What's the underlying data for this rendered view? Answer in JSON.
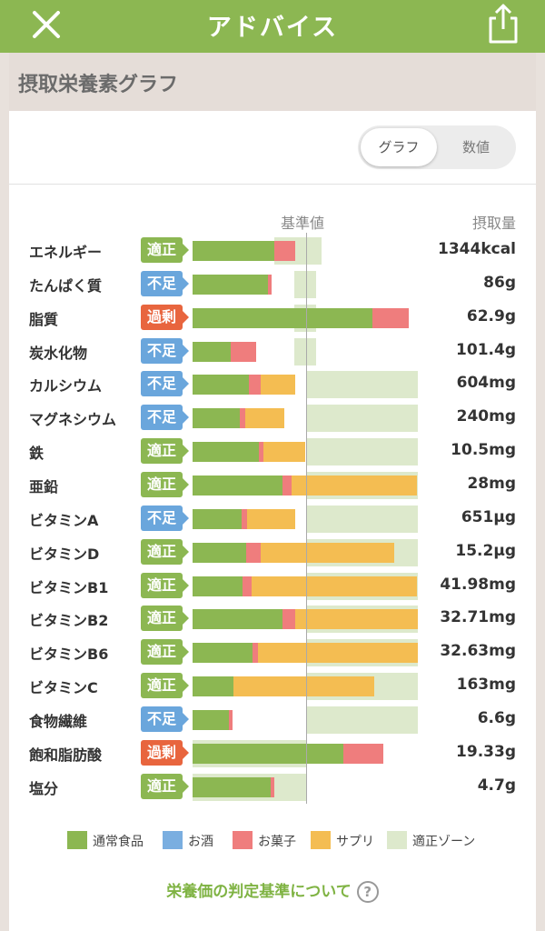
{
  "header": {
    "title": "アドバイス"
  },
  "section": {
    "title": "摂取栄養素グラフ"
  },
  "toggle": {
    "graph_label": "グラフ",
    "number_label": "数値"
  },
  "columns": {
    "reference": "基準値",
    "intake": "摂取量"
  },
  "colors": {
    "food": "#8cb752",
    "alcohol": "#7aaee0",
    "snack": "#ef7d7d",
    "supplement": "#f4bd52",
    "zone": "#dde9cc",
    "status_ok": "#8cb752",
    "status_low": "#6aa6dc",
    "status_over": "#e8653e"
  },
  "nutrients": [
    {
      "name": "エネルギー",
      "status": "適正",
      "status_type": "ok",
      "value": "1344kcal",
      "food": 0.9,
      "snack": 0.23,
      "supp": 0,
      "zone": [
        0.9,
        1.42
      ]
    },
    {
      "name": "たんぱく質",
      "status": "不足",
      "status_type": "low",
      "value": "86g",
      "food": 0.83,
      "snack": 0.04,
      "supp": 0,
      "zone": [
        1.12,
        1.36
      ]
    },
    {
      "name": "脂質",
      "status": "過剰",
      "status_type": "over",
      "value": "62.9g",
      "food": 1.98,
      "snack": 0.4,
      "supp": 0,
      "zone": [
        1.12,
        1.36
      ]
    },
    {
      "name": "炭水化物",
      "status": "不足",
      "status_type": "low",
      "value": "101.4g",
      "food": 0.42,
      "snack": 0.28,
      "supp": 0,
      "zone": [
        1.12,
        1.36
      ]
    },
    {
      "name": "カルシウム",
      "status": "不足",
      "status_type": "low",
      "value": "604mg",
      "food": 0.62,
      "snack": 0.13,
      "supp": 0.38,
      "zone": [
        1.25,
        2.48
      ]
    },
    {
      "name": "マグネシウム",
      "status": "不足",
      "status_type": "low",
      "value": "240mg",
      "food": 0.52,
      "snack": 0.06,
      "supp": 0.43,
      "zone": [
        1.25,
        2.48
      ]
    },
    {
      "name": "鉄",
      "status": "適正",
      "status_type": "ok",
      "value": "10.5mg",
      "food": 0.73,
      "snack": 0.05,
      "supp": 0.46,
      "zone": [
        1.25,
        2.48
      ]
    },
    {
      "name": "亜鉛",
      "status": "適正",
      "status_type": "ok",
      "value": "28mg",
      "food": 0.99,
      "snack": 0.1,
      "supp": 1.38,
      "zone": [
        1.25,
        2.48
      ]
    },
    {
      "name": "ビタミンA",
      "status": "不足",
      "status_type": "low",
      "value": "651μg",
      "food": 0.54,
      "snack": 0.06,
      "supp": 0.53,
      "zone": [
        1.25,
        2.48
      ]
    },
    {
      "name": "ビタミンD",
      "status": "適正",
      "status_type": "ok",
      "value": "15.2μg",
      "food": 0.59,
      "snack": 0.16,
      "supp": 1.47,
      "zone": [
        1.25,
        2.48
      ]
    },
    {
      "name": "ビタミンB1",
      "status": "適正",
      "status_type": "ok",
      "value": "41.98mg",
      "food": 0.55,
      "snack": 0.1,
      "supp": 1.82,
      "zone": [
        1.25,
        2.48
      ]
    },
    {
      "name": "ビタミンB2",
      "status": "適正",
      "status_type": "ok",
      "value": "32.71mg",
      "food": 0.99,
      "snack": 0.14,
      "supp": 1.35,
      "zone": [
        1.25,
        2.48
      ]
    },
    {
      "name": "ビタミンB6",
      "status": "適正",
      "status_type": "ok",
      "value": "32.63mg",
      "food": 0.66,
      "snack": 0.06,
      "supp": 1.76,
      "zone": [
        1.25,
        2.48
      ]
    },
    {
      "name": "ビタミンC",
      "status": "適正",
      "status_type": "ok",
      "value": "163mg",
      "food": 0.45,
      "snack": 0,
      "supp": 1.55,
      "zone": [
        1.25,
        2.48
      ]
    },
    {
      "name": "食物繊維",
      "status": "不足",
      "status_type": "low",
      "value": "6.6g",
      "food": 0.4,
      "snack": 0.04,
      "supp": 0,
      "zone": [
        1.25,
        2.48
      ]
    },
    {
      "name": "飽和脂肪酸",
      "status": "過剰",
      "status_type": "over",
      "value": "19.33g",
      "food": 1.66,
      "snack": 0.44,
      "supp": 0,
      "zone": [
        0,
        1.25
      ]
    },
    {
      "name": "塩分",
      "status": "適正",
      "status_type": "ok",
      "value": "4.7g",
      "food": 0.86,
      "snack": 0.04,
      "supp": 0,
      "zone": [
        0,
        1.25
      ]
    }
  ],
  "legend": [
    {
      "label": "通常食品",
      "key": "food"
    },
    {
      "label": "お酒",
      "key": "alcohol"
    },
    {
      "label": "お菓子",
      "key": "snack"
    },
    {
      "label": "サプリ",
      "key": "supplement"
    },
    {
      "label": "適正ゾーン",
      "key": "zone"
    }
  ],
  "footer": {
    "link": "栄養価の判定基準について",
    "help": "?"
  }
}
